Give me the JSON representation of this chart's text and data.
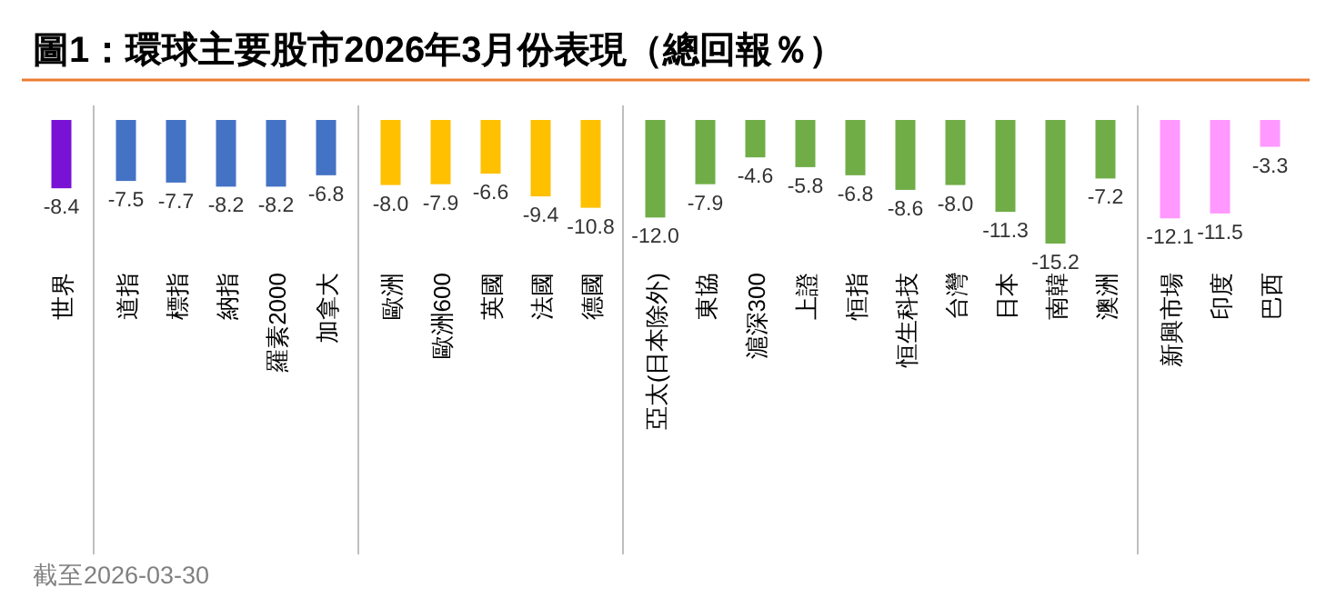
{
  "chart_data": {
    "type": "bar",
    "title": "圖1：環球主要股市2026年3月份表現（總回報％）",
    "categories": [
      "世界",
      "道指",
      "標指",
      "納指",
      "羅素2000",
      "加拿大",
      "歐洲",
      "歐洲600",
      "英國",
      "法國",
      "德國",
      "亞太(日本除外)",
      "東協",
      "滬深300",
      "上證",
      "恒指",
      "恒生科技",
      "台灣",
      "日本",
      "南韓",
      "澳洲",
      "新興市場",
      "印度",
      "巴西"
    ],
    "values": [
      -8.4,
      -7.5,
      -7.7,
      -8.2,
      -8.2,
      -6.8,
      -8.0,
      -7.9,
      -6.6,
      -9.4,
      -10.8,
      -12.0,
      -7.9,
      -4.6,
      -5.8,
      -6.8,
      -8.6,
      -8.0,
      -11.3,
      -15.2,
      -7.2,
      -12.1,
      -11.5,
      -3.3
    ],
    "colors": [
      "#7a12d6",
      "#4472c4",
      "#4472c4",
      "#4472c4",
      "#4472c4",
      "#4472c4",
      "#ffc000",
      "#ffc000",
      "#ffc000",
      "#ffc000",
      "#ffc000",
      "#70ad47",
      "#70ad47",
      "#70ad47",
      "#70ad47",
      "#70ad47",
      "#70ad47",
      "#70ad47",
      "#70ad47",
      "#70ad47",
      "#70ad47",
      "#ff99ff",
      "#ff99ff",
      "#ff99ff"
    ],
    "value_labels": [
      "-8.4",
      "-7.5",
      "-7.7",
      "-8.2",
      "-8.2",
      "-6.8",
      "-8.0",
      "-7.9",
      "-6.6",
      "-9.4",
      "-10.8",
      "-12.0",
      "-7.9",
      "-4.6",
      "-5.8",
      "-6.8",
      "-8.6",
      "-8.0",
      "-11.3",
      "-15.2",
      "-7.2",
      "-12.1",
      "-11.5",
      "-3.3"
    ],
    "annotations": [
      "截至2026-03-30"
    ]
  }
}
